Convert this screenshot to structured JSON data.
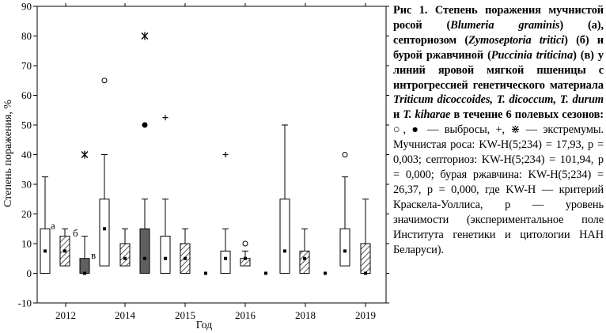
{
  "chart_data": {
    "type": "box",
    "ylabel": "Степень поражения, %",
    "xlabel": "Год",
    "ylim": [
      -10,
      90
    ],
    "yticks": [
      -10,
      0,
      10,
      20,
      30,
      40,
      50,
      60,
      70,
      80,
      90
    ],
    "year_labels": [
      "2012",
      "2014",
      "2015",
      "2016",
      "2018",
      "2019"
    ],
    "legend_letters": {
      "a": "а",
      "b": "б",
      "v": "в"
    },
    "colors": {
      "powdery_mildew": "#ffffff",
      "septoria": "hatched",
      "leaf_rust": "#606060"
    },
    "series": [
      {
        "key": "powdery_mildew",
        "letter": "а"
      },
      {
        "key": "septoria",
        "letter": "б"
      },
      {
        "key": "leaf_rust",
        "letter": "в"
      }
    ],
    "groups": [
      {
        "year": "2012",
        "boxes": [
          {
            "series": "powdery_mildew",
            "median": 7.5,
            "q1": 0,
            "q3": 15,
            "whisker_low": 0,
            "whisker_high": 32.5,
            "outliers": [],
            "extremes": []
          },
          {
            "series": "septoria",
            "median": 7.5,
            "q1": 2.5,
            "q3": 12.5,
            "whisker_low": 0,
            "whisker_high": 15,
            "outliers": [],
            "extremes": []
          },
          {
            "series": "leaf_rust",
            "median": 0,
            "q1": 0,
            "q3": 5,
            "whisker_low": 0,
            "whisker_high": 12.5,
            "outliers": [],
            "extremes": [
              40
            ]
          }
        ]
      },
      {
        "year": "2014",
        "boxes": [
          {
            "series": "powdery_mildew",
            "median": 15,
            "q1": 2.5,
            "q3": 25,
            "whisker_low": 0,
            "whisker_high": 40,
            "outliers": [
              65
            ],
            "extremes": []
          },
          {
            "series": "septoria",
            "median": 5,
            "q1": 2.5,
            "q3": 10,
            "whisker_low": 0,
            "whisker_high": 15,
            "outliers": [],
            "extremes": []
          },
          {
            "series": "leaf_rust",
            "median": 5,
            "q1": 0,
            "q3": 15,
            "whisker_low": 0,
            "whisker_high": 25,
            "outliers": [
              50
            ],
            "extremes": [
              80
            ]
          }
        ]
      },
      {
        "year": "2015",
        "boxes": [
          {
            "series": "powdery_mildew",
            "median": 5,
            "q1": 0,
            "q3": 12.5,
            "whisker_low": 0,
            "whisker_high": 25,
            "outliers": [],
            "extremes": []
          },
          {
            "series": "septoria",
            "median": 5,
            "q1": 0,
            "q3": 10,
            "whisker_low": 0,
            "whisker_high": 15,
            "outliers": [],
            "extremes": []
          },
          {
            "series": "leaf_rust",
            "median": 0,
            "q1": 0,
            "q3": 0,
            "whisker_low": 0,
            "whisker_high": 0,
            "outliers": [],
            "extremes": []
          }
        ]
      },
      {
        "year": "2016",
        "boxes": [
          {
            "series": "powdery_mildew",
            "median": 5,
            "q1": 0,
            "q3": 7.5,
            "whisker_low": 0,
            "whisker_high": 15,
            "outliers": [],
            "extremes": []
          },
          {
            "series": "septoria",
            "median": 5,
            "q1": 2.5,
            "q3": 5,
            "whisker_low": 0,
            "whisker_high": 7.5,
            "outliers": [
              10
            ],
            "extremes": []
          },
          {
            "series": "leaf_rust",
            "median": 0,
            "q1": 0,
            "q3": 0,
            "whisker_low": 0,
            "whisker_high": 0,
            "outliers": [],
            "extremes": []
          }
        ]
      },
      {
        "year": "2018",
        "boxes": [
          {
            "series": "powdery_mildew",
            "median": 7.5,
            "q1": 0,
            "q3": 25,
            "whisker_low": 0,
            "whisker_high": 50,
            "outliers": [],
            "extremes": []
          },
          {
            "series": "septoria",
            "median": 5,
            "q1": 0,
            "q3": 7.5,
            "whisker_low": 0,
            "whisker_high": 15,
            "outliers": [],
            "extremes": []
          },
          {
            "series": "leaf_rust",
            "median": 0,
            "q1": 0,
            "q3": 0,
            "whisker_low": 0,
            "whisker_high": 0,
            "outliers": [],
            "extremes": []
          }
        ]
      },
      {
        "year": "2019",
        "boxes": [
          {
            "series": "powdery_mildew",
            "median": 7.5,
            "q1": 2.5,
            "q3": 15,
            "whisker_low": 0,
            "whisker_high": 32.5,
            "outliers": [
              40
            ],
            "extremes": []
          },
          {
            "series": "septoria",
            "median": 0,
            "q1": 0,
            "q3": 10,
            "whisker_low": 0,
            "whisker_high": 25,
            "outliers": [],
            "extremes": []
          }
        ]
      }
    ],
    "plus_markers": [
      {
        "year": "2015",
        "series": "powdery_mildew",
        "value": 52.5
      },
      {
        "year": "2016",
        "series": "powdery_mildew",
        "value": 40
      }
    ]
  },
  "caption": {
    "title_bold": "Рис 1. Степень поражения мучнистой росой (",
    "pathogen1": "Blumeria graminis",
    "t2": ") (а), септориозом (",
    "pathogen2": "Zymoseptoria tritici",
    "t3": ") (б) и бурой ржавчиной (",
    "pathogen3": "Puccinia triticina",
    "t4": ") (в) у линий яровой мягкой пшеницы с интрогрессией генетического материала ",
    "species1": "Triticum dicoccoides, T. dicoccum, T. durum",
    "t5": " и ",
    "species2": "T. kiharae",
    "t6": " в течение 6 полевых сезонов:",
    "legend_text": " ○, ● — выбросы, +, ⋇ — экстремумы.",
    "stats": " Мучнистая роса: KW-H(5;234) = 17,93, p = 0,003; септориоз: KW-H(5;234) = 101,94, p = 0,000; бурая ржавчина: KW-H(5;234) = 26,37, p = 0,000, где KW-H — критерий Краскела-Уоллиса, p — уровень значимости (экспериментальное поле Института генетики и цитологии НАН Беларуси)."
  }
}
